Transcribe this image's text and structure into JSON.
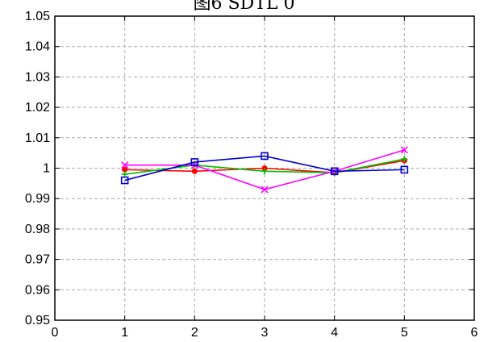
{
  "chart_data": {
    "type": "line",
    "title": "图6 SDTL 0",
    "xlabel": "",
    "ylabel": "",
    "xlim": [
      0,
      6
    ],
    "ylim": [
      0.95,
      1.05
    ],
    "grid": true,
    "xticks": [
      "0",
      "1",
      "2",
      "3",
      "4",
      "5",
      "6"
    ],
    "yticks": [
      "0.95",
      "0.96",
      "0.97",
      "0.98",
      "0.99",
      "1",
      "1.01",
      "1.02",
      "1.03",
      "1.04",
      "1.05"
    ],
    "x": [
      1,
      2,
      3,
      4,
      5
    ],
    "series": [
      {
        "color": "#ff0000",
        "marker": "dot",
        "values": [
          0.9995,
          0.999,
          1.0,
          0.9985,
          1.0025
        ]
      },
      {
        "color": "#00c000",
        "marker": "plus",
        "values": [
          0.998,
          1.001,
          0.999,
          0.9985,
          1.003
        ]
      },
      {
        "color": "#ff00ff",
        "marker": "x",
        "values": [
          1.001,
          1.001,
          0.993,
          0.999,
          1.006
        ]
      },
      {
        "color": "#0000cc",
        "marker": "square",
        "values": [
          0.996,
          1.002,
          1.004,
          0.999,
          0.9995
        ]
      }
    ]
  }
}
